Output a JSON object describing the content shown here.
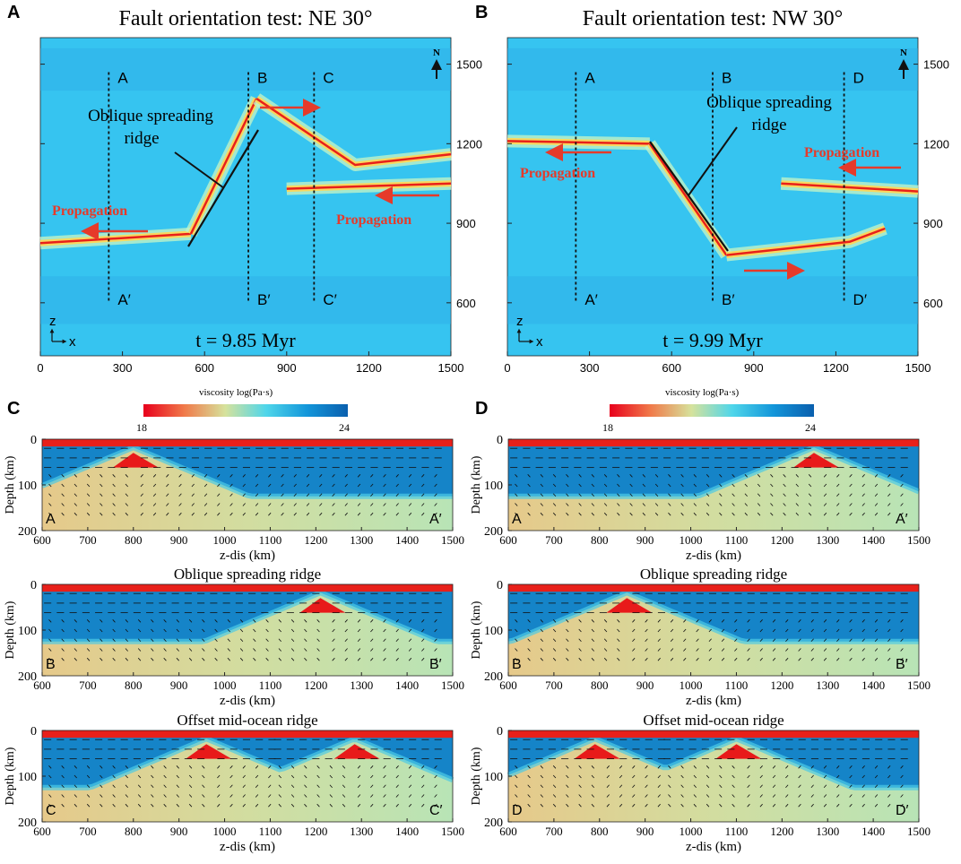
{
  "figure_title": "Fault orientation tests: NE 30° and NW 30°",
  "colorbar": {
    "label": "viscosity log(Pa·s)",
    "min_label": "18",
    "max_label": "24",
    "colors": [
      "#e8001c",
      "#f0a060",
      "#d8e09a",
      "#50d8e8",
      "#1090d8",
      "#0a60b0"
    ]
  },
  "colors": {
    "ridge_red": "#e8201a",
    "arrow_red": "#e63a2a",
    "ocean_blue": "#36c4f0",
    "deep_blue": "#1584c8",
    "mantle_green": "#cfe4a8"
  },
  "chart_data": [
    {
      "panel": "A",
      "type": "heatmap",
      "title": "Fault orientation test:  NE 30°",
      "time_label": "t = 9.85 Myr",
      "xlim": [
        0,
        1500
      ],
      "ylim": [
        400,
        1600
      ],
      "xticks": [
        "0",
        "300",
        "600",
        "900",
        "1200",
        "1500"
      ],
      "yticks": [
        "600",
        "900",
        "1200",
        "1500"
      ],
      "north_label": "N",
      "axis_z": "z",
      "axis_x": "x",
      "profiles": [
        {
          "top": "A",
          "bottom": "A′",
          "x": 250
        },
        {
          "top": "B",
          "bottom": "B′",
          "x": 760
        },
        {
          "top": "C",
          "bottom": "C′",
          "x": 1000
        }
      ],
      "annotations": {
        "ridge_line1": "Oblique spreading",
        "ridge_line2": "ridge",
        "propagation_left": "Propagation",
        "propagation_right": "Propagation"
      },
      "ridge_segments": [
        {
          "name": "western ridge",
          "points": [
            [
              0,
              825
            ],
            [
              550,
              860
            ]
          ]
        },
        {
          "name": "oblique ridge",
          "points": [
            [
              550,
              860
            ],
            [
              790,
              1370
            ]
          ]
        },
        {
          "name": "north branch",
          "points": [
            [
              790,
              1370
            ],
            [
              1150,
              1120
            ],
            [
              1500,
              1160
            ]
          ]
        },
        {
          "name": "eastern ridge",
          "points": [
            [
              900,
              1030
            ],
            [
              1500,
              1050
            ]
          ]
        }
      ]
    },
    {
      "panel": "B",
      "type": "heatmap",
      "title": "Fault orientation test:  NW 30°",
      "time_label": "t = 9.99 Myr",
      "xlim": [
        0,
        1500
      ],
      "ylim": [
        400,
        1600
      ],
      "xticks": [
        "0",
        "300",
        "600",
        "900",
        "1200",
        "1500"
      ],
      "yticks": [
        "600",
        "900",
        "1200",
        "1500"
      ],
      "north_label": "N",
      "axis_z": "z",
      "axis_x": "x",
      "profiles": [
        {
          "top": "A",
          "bottom": "A′",
          "x": 250
        },
        {
          "top": "B",
          "bottom": "B′",
          "x": 750
        },
        {
          "top": "D",
          "bottom": "D′",
          "x": 1230
        }
      ],
      "annotations": {
        "ridge_line1": "Oblique spreading",
        "ridge_line2": "ridge",
        "propagation_left": "Propagation",
        "propagation_right": "Propagation"
      },
      "ridge_segments": [
        {
          "name": "western ridge",
          "points": [
            [
              0,
              1210
            ],
            [
              520,
              1200
            ]
          ]
        },
        {
          "name": "oblique ridge",
          "points": [
            [
              520,
              1200
            ],
            [
              800,
              780
            ]
          ]
        },
        {
          "name": "south branch",
          "points": [
            [
              800,
              780
            ],
            [
              1250,
              830
            ],
            [
              1380,
              880
            ]
          ]
        },
        {
          "name": "eastern ridge",
          "points": [
            [
              1000,
              1050
            ],
            [
              1500,
              1020
            ]
          ]
        }
      ]
    },
    {
      "panel": "C",
      "type": "heatmap",
      "colorbar": true,
      "rows": [
        {
          "subtitle": "",
          "left": "A",
          "right": "A′",
          "ridges_km": [
            800
          ],
          "dir": "NE"
        },
        {
          "subtitle": "Oblique spreading ridge",
          "left": "B",
          "right": "B′",
          "ridges_km": [
            1210
          ],
          "dir": "NE"
        },
        {
          "subtitle": "Offset mid-ocean ridge",
          "left": "C",
          "right": "C′",
          "ridges_km": [
            960,
            1285
          ],
          "dir": "NE"
        }
      ],
      "xlim": [
        600,
        1500
      ],
      "ylim": [
        0,
        200
      ],
      "xticks": [
        "600",
        "700",
        "800",
        "900",
        "1000",
        "1100",
        "1200",
        "1300",
        "1400",
        "1500"
      ],
      "yticks": [
        "0",
        "100",
        "200"
      ],
      "xlabel": "z-dis (km)",
      "ylabel": "Depth (km)"
    },
    {
      "panel": "D",
      "type": "heatmap",
      "colorbar": true,
      "rows": [
        {
          "subtitle": "",
          "left": "A",
          "right": "A′",
          "ridges_km": [
            1270
          ],
          "dir": "NW"
        },
        {
          "subtitle": "Oblique spreading ridge",
          "left": "B",
          "right": "B′",
          "ridges_km": [
            860
          ],
          "dir": "NW"
        },
        {
          "subtitle": "Offset mid-ocean ridge",
          "left": "D",
          "right": "D′",
          "ridges_km": [
            790,
            1100
          ],
          "dir": "NW"
        }
      ],
      "xlim": [
        600,
        1500
      ],
      "ylim": [
        0,
        200
      ],
      "xticks": [
        "600",
        "700",
        "800",
        "900",
        "1000",
        "1100",
        "1200",
        "1300",
        "1400",
        "1500"
      ],
      "yticks": [
        "0",
        "100",
        "200"
      ],
      "xlabel": "z-dis (km)",
      "ylabel": "Depth (km)"
    }
  ]
}
